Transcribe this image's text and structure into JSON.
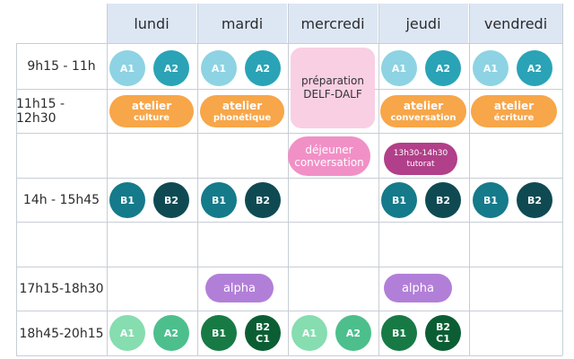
{
  "colors": {
    "header_bg": "#dde7f4",
    "grid": "#c8cdd6",
    "a_light": "#8dd3e3",
    "a_teal": "#2aa3b6",
    "b_teal": "#157a8a",
    "b_dark": "#0f4a52",
    "evening_a1": "#86ddb0",
    "evening_a2": "#4cbf8d",
    "evening_green": "#177a45",
    "evening_dark": "#0b5e33",
    "orange": "#f7a649",
    "pink_light": "#f9cfe3",
    "pink": "#f190c6",
    "plum": "#b13f89",
    "purple": "#b27fd8"
  },
  "days": [
    "lundi",
    "mardi",
    "mercredi",
    "jeudi",
    "vendredi"
  ],
  "times": [
    "9h15 - 11h",
    "11h15 - 12h30",
    "",
    "14h - 15h45",
    "",
    "17h15-18h30",
    "18h45-20h15"
  ],
  "levels": {
    "a1": "A1",
    "a2": "A2",
    "b1": "B1",
    "b2": "B2",
    "b2_line1": "B2",
    "b2_line2": "C1"
  },
  "ateliers": {
    "label": "atelier",
    "culture": "culture",
    "phonetique": "phonétique",
    "conversation": "conversation",
    "ecriture": "écriture"
  },
  "mercredi": {
    "prep_line1": "préparation",
    "prep_line2": "DELF-DALF",
    "dejeuner_line1": "déjeuner",
    "dejeuner_line2": "conversation"
  },
  "jeudi": {
    "tutorat_line1": "13h30-14h30",
    "tutorat_line2": "tutorat"
  },
  "alpha": "alpha"
}
